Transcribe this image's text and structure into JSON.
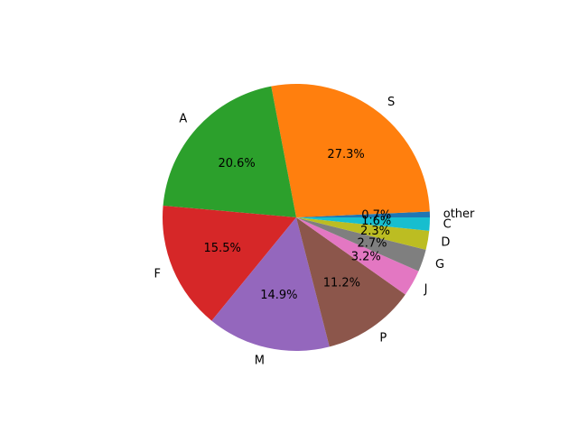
{
  "chart_data": {
    "type": "pie",
    "categories": [
      "other",
      "S",
      "A",
      "F",
      "M",
      "P",
      "J",
      "G",
      "D",
      "C"
    ],
    "values": [
      0.7,
      27.3,
      20.6,
      15.5,
      14.9,
      11.2,
      3.2,
      2.7,
      2.3,
      1.6
    ],
    "value_labels": [
      "0.7%",
      "27.3%",
      "20.6%",
      "15.5%",
      "14.9%",
      "11.2%",
      "3.2%",
      "2.7%",
      "2.3%",
      "1.6%"
    ],
    "colors": [
      "#1f77b4",
      "#ff7f0e",
      "#2ca02c",
      "#d62728",
      "#9467bd",
      "#8c564b",
      "#e377c2",
      "#7f7f7f",
      "#bcbd22",
      "#17becf"
    ]
  }
}
